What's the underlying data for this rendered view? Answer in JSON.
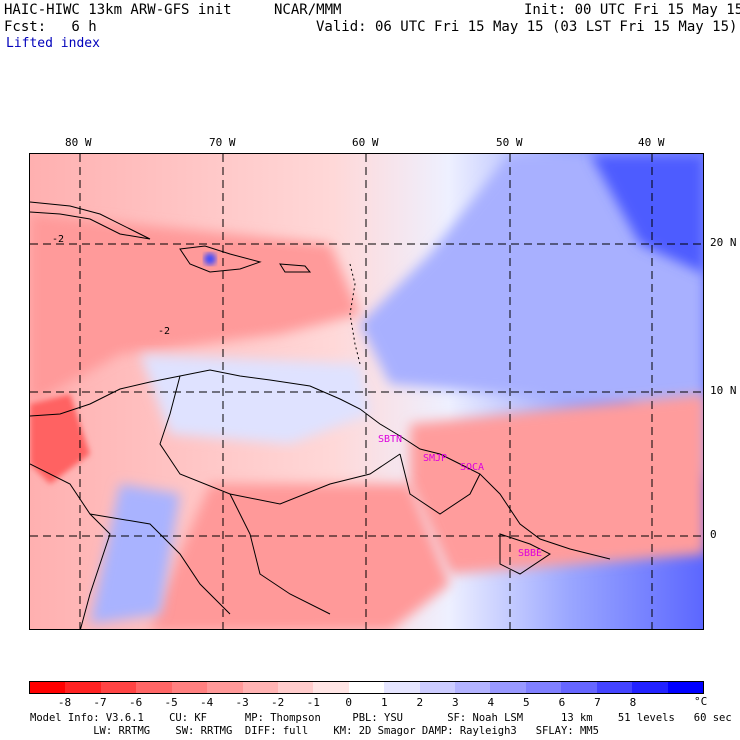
{
  "header": {
    "title": "HAIC-HIWC 13km ARW-GFS init",
    "org": "NCAR/MMM",
    "init": "Init: 00 UTC Fri 15 May 15",
    "fcst": "Fcst:   6 h",
    "valid": "Valid: 06 UTC Fri 15 May 15 (03 LST Fri 15 May 15)",
    "field": "Lifted index"
  },
  "map": {
    "lon_labels": [
      "80 W",
      "70 W",
      "60 W",
      "50 W",
      "40 W"
    ],
    "lat_labels": [
      "20 N",
      "10 N",
      "0"
    ],
    "stations": [
      "SBTN",
      "SMJP",
      "SOCA",
      "SBBE"
    ],
    "contour_labels": [
      "-2",
      "-2"
    ]
  },
  "colorbar": {
    "unit": "°C",
    "labels": [
      "-8",
      "-7",
      "-6",
      "-5",
      "-4",
      "-3",
      "-2",
      "-1",
      "0",
      "1",
      "2",
      "3",
      "4",
      "5",
      "6",
      "7",
      "8"
    ],
    "colors": [
      "#ff0000",
      "#ff2222",
      "#ff4444",
      "#ff6666",
      "#ff8080",
      "#ff9999",
      "#ffb3b3",
      "#ffcccc",
      "#ffe5e5",
      "#ffffff",
      "#e5e5ff",
      "#ccccff",
      "#b3b3ff",
      "#9999ff",
      "#8080ff",
      "#6666ff",
      "#4444ff",
      "#2222ff",
      "#0000ff"
    ]
  },
  "footer": {
    "line1": "Model Info: V3.6.1    CU: KF      MP: Thompson     PBL: YSU       SF: Noah LSM      13 km    51 levels   60 sec",
    "line2": "          LW: RRTMG    SW: RRTMG  DIFF: full    KM: 2D Smagor DAMP: Rayleigh3   SFLAY: MM5"
  }
}
